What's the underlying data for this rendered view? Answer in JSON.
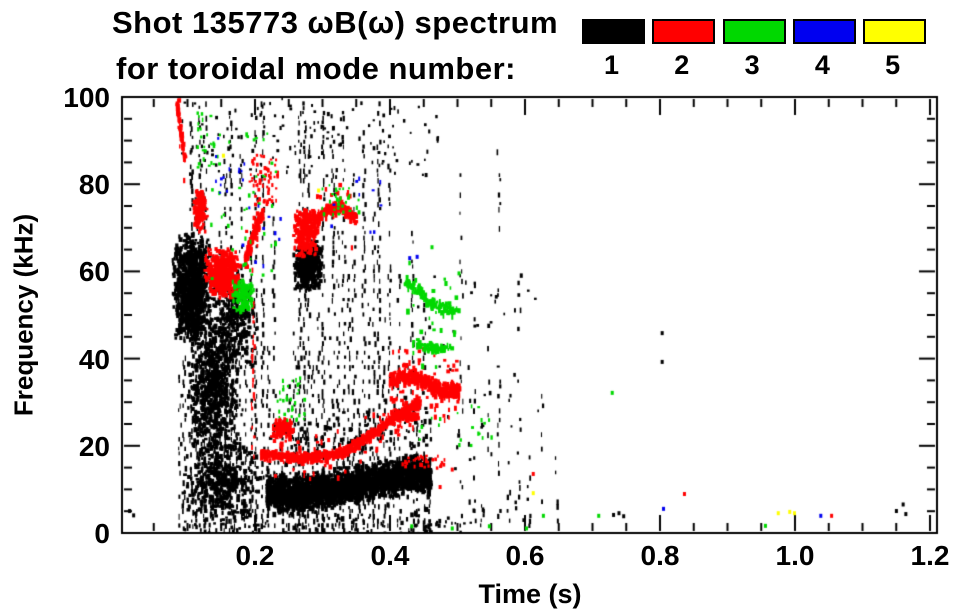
{
  "chart_data": {
    "type": "scatter",
    "title": "Shot 135773 ωB(ω) spectrum",
    "subtitle": "for toroidal mode number:",
    "xlabel": "Time (s)",
    "ylabel": "Frequency (kHz)",
    "xlim": [
      0.0,
      1.21
    ],
    "ylim": [
      0,
      100
    ],
    "x_ticks": [
      {
        "v": 0.2,
        "label": "0.2"
      },
      {
        "v": 0.4,
        "label": "0.4"
      },
      {
        "v": 0.6,
        "label": "0.6"
      },
      {
        "v": 0.8,
        "label": "0.8"
      },
      {
        "v": 1.0,
        "label": "1.0"
      },
      {
        "v": 1.2,
        "label": "1.2"
      }
    ],
    "x_minor_step": 0.05,
    "y_ticks": [
      {
        "v": 0,
        "label": "0"
      },
      {
        "v": 20,
        "label": "20"
      },
      {
        "v": 40,
        "label": "40"
      },
      {
        "v": 60,
        "label": "60"
      },
      {
        "v": 80,
        "label": "80"
      },
      {
        "v": 100,
        "label": "100"
      }
    ],
    "y_minor_step": 5,
    "legend": [
      {
        "label": "1",
        "color": "#000000"
      },
      {
        "label": "2",
        "color": "#ff0000"
      },
      {
        "label": "3",
        "color": "#00d800"
      },
      {
        "label": "4",
        "color": "#0000f0"
      },
      {
        "label": "5",
        "color": "#ffff00"
      }
    ],
    "mode_colors": {
      "1": "#000000",
      "2": "#ff0000",
      "3": "#00d800",
      "4": "#0000f0",
      "5": "#ffff00"
    },
    "features": [
      {
        "mode": 1,
        "kind": "blob",
        "t": [
          0.075,
          0.135
        ],
        "f": [
          44,
          70
        ],
        "n": 1000
      },
      {
        "mode": 1,
        "kind": "blob",
        "t": [
          0.095,
          0.175
        ],
        "f": [
          18,
          50
        ],
        "n": 650
      },
      {
        "mode": 1,
        "kind": "blob",
        "t": [
          0.13,
          0.205
        ],
        "f": [
          38,
          62
        ],
        "n": 300
      },
      {
        "mode": 1,
        "kind": "blob",
        "t": [
          0.085,
          0.21
        ],
        "f": [
          2,
          22
        ],
        "n": 420
      },
      {
        "mode": 1,
        "kind": "blob",
        "t": [
          0.255,
          0.298
        ],
        "f": [
          56,
          68
        ],
        "n": 420
      },
      {
        "mode": 1,
        "kind": "band",
        "path": [
          [
            0.215,
            10
          ],
          [
            0.25,
            9
          ],
          [
            0.3,
            10
          ],
          [
            0.35,
            11.5
          ],
          [
            0.4,
            13
          ],
          [
            0.435,
            14.5
          ],
          [
            0.458,
            13
          ]
        ],
        "hw": 5.5,
        "n": 3000
      },
      {
        "mode": 1,
        "kind": "specks",
        "t": [
          0.09,
          0.47
        ],
        "f": [
          82,
          100
        ],
        "n": 130
      },
      {
        "mode": 1,
        "kind": "specks",
        "t": [
          0.09,
          0.52
        ],
        "f": [
          0,
          4
        ],
        "n": 70
      },
      {
        "mode": 1,
        "kind": "specks",
        "t": [
          0.44,
          0.62
        ],
        "f": [
          2,
          60
        ],
        "n": 55
      },
      {
        "mode": 1,
        "kind": "vstreaks",
        "streaks": [
          [
            0.088,
            0,
            38,
            0.5
          ],
          [
            0.094,
            0,
            55,
            0.5
          ],
          [
            0.105,
            2,
            99,
            0.6
          ],
          [
            0.112,
            0,
            78,
            0.55
          ],
          [
            0.118,
            0,
            97,
            0.6
          ],
          [
            0.125,
            0,
            99,
            0.65
          ],
          [
            0.132,
            0,
            60,
            0.5
          ],
          [
            0.14,
            0,
            45,
            0.5
          ],
          [
            0.148,
            0,
            70,
            0.5
          ],
          [
            0.155,
            0,
            86,
            0.55
          ],
          [
            0.163,
            0,
            97,
            0.6
          ],
          [
            0.17,
            0,
            55,
            0.5
          ],
          [
            0.178,
            0,
            92,
            0.55
          ],
          [
            0.185,
            0,
            40,
            0.5
          ],
          [
            0.193,
            0,
            70,
            0.5
          ],
          [
            0.2,
            0,
            97,
            0.55
          ],
          [
            0.21,
            0,
            99,
            0.65
          ],
          [
            0.218,
            0,
            45,
            0.45
          ],
          [
            0.227,
            0,
            78,
            0.4
          ],
          [
            0.238,
            0,
            25,
            0.45
          ],
          [
            0.248,
            0,
            35,
            0.45
          ],
          [
            0.258,
            0,
            50,
            0.45
          ],
          [
            0.265,
            0,
            99,
            0.6
          ],
          [
            0.272,
            0,
            99,
            0.65
          ],
          [
            0.278,
            0,
            90,
            0.5
          ],
          [
            0.285,
            0,
            40,
            0.45
          ],
          [
            0.292,
            0,
            65,
            0.45
          ],
          [
            0.3,
            0,
            97,
            0.55
          ],
          [
            0.308,
            0,
            55,
            0.45
          ],
          [
            0.315,
            0,
            92,
            0.5
          ],
          [
            0.322,
            0,
            70,
            0.45
          ],
          [
            0.33,
            0,
            99,
            0.6
          ],
          [
            0.338,
            0,
            60,
            0.45
          ],
          [
            0.345,
            0,
            85,
            0.5
          ],
          [
            0.352,
            0,
            45,
            0.45
          ],
          [
            0.36,
            0,
            97,
            0.55
          ],
          [
            0.368,
            0,
            55,
            0.45
          ],
          [
            0.375,
            0,
            80,
            0.5
          ],
          [
            0.382,
            0,
            99,
            0.6
          ],
          [
            0.39,
            0,
            50,
            0.45
          ],
          [
            0.398,
            0,
            90,
            0.5
          ],
          [
            0.405,
            0,
            35,
            0.4
          ],
          [
            0.412,
            0,
            60,
            0.4
          ],
          [
            0.425,
            0,
            45,
            0.4
          ],
          [
            0.432,
            0,
            70,
            0.4
          ],
          [
            0.44,
            0,
            30,
            0.4
          ],
          [
            0.45,
            0,
            55,
            0.35
          ],
          [
            0.458,
            0,
            25,
            0.35
          ],
          [
            0.505,
            0,
            88,
            0.3
          ],
          [
            0.515,
            0,
            40,
            0.25
          ],
          [
            0.525,
            0,
            60,
            0.25
          ],
          [
            0.535,
            0,
            30,
            0.25
          ],
          [
            0.545,
            0,
            50,
            0.25
          ],
          [
            0.56,
            0,
            90,
            0.3
          ],
          [
            0.575,
            0,
            35,
            0.2
          ],
          [
            0.59,
            0,
            55,
            0.2
          ],
          [
            0.605,
            0,
            25,
            0.2
          ],
          [
            0.625,
            0,
            40,
            0.2
          ],
          [
            0.645,
            0,
            20,
            0.2
          ]
        ]
      },
      {
        "mode": 1,
        "kind": "dots",
        "points": [
          [
            0.012,
            5.5
          ],
          [
            0.018,
            4.5
          ],
          [
            0.801,
            46.3
          ],
          [
            0.801,
            39.7
          ],
          [
            0.729,
            4.6
          ],
          [
            0.737,
            5
          ],
          [
            0.744,
            4.3
          ],
          [
            1.148,
            5.5
          ],
          [
            1.158,
            7
          ],
          [
            1.162,
            4.8
          ]
        ]
      },
      {
        "mode": 2,
        "kind": "band",
        "path": [
          [
            0.082,
            99
          ],
          [
            0.09,
            90
          ],
          [
            0.095,
            85
          ]
        ],
        "hw": 2,
        "n": 70
      },
      {
        "mode": 2,
        "kind": "blob",
        "t": [
          0.106,
          0.128
        ],
        "f": [
          69,
          80
        ],
        "n": 130
      },
      {
        "mode": 2,
        "kind": "blob",
        "t": [
          0.123,
          0.178
        ],
        "f": [
          54,
          66
        ],
        "n": 520
      },
      {
        "mode": 2,
        "kind": "band",
        "path": [
          [
            0.183,
            63
          ],
          [
            0.21,
            75
          ]
        ],
        "hw": 2.5,
        "n": 160
      },
      {
        "mode": 2,
        "kind": "specks",
        "t": [
          0.188,
          0.232
        ],
        "f": [
          76,
          87
        ],
        "n": 60
      },
      {
        "mode": 2,
        "kind": "blob",
        "t": [
          0.253,
          0.292
        ],
        "f": [
          63,
          76
        ],
        "n": 260
      },
      {
        "mode": 2,
        "kind": "band",
        "path": [
          [
            0.285,
            72
          ],
          [
            0.305,
            74.5
          ],
          [
            0.325,
            75.5
          ],
          [
            0.348,
            72.5
          ]
        ],
        "hw": 2,
        "n": 220
      },
      {
        "mode": 2,
        "kind": "vstreaks",
        "streaks": [
          [
            0.196,
            18,
            54,
            0.7
          ]
        ]
      },
      {
        "mode": 2,
        "kind": "band",
        "path": [
          [
            0.207,
            18.5
          ],
          [
            0.25,
            17.8
          ],
          [
            0.3,
            18
          ],
          [
            0.335,
            19.5
          ],
          [
            0.37,
            23
          ],
          [
            0.4,
            26.5
          ],
          [
            0.425,
            29
          ],
          [
            0.443,
            30.5
          ]
        ],
        "hw": 1.6,
        "n": 750
      },
      {
        "mode": 2,
        "kind": "blob",
        "t": [
          0.222,
          0.258
        ],
        "f": [
          22,
          27
        ],
        "n": 110
      },
      {
        "mode": 2,
        "kind": "band",
        "path": [
          [
            0.398,
            35.5
          ],
          [
            0.43,
            36.5
          ],
          [
            0.455,
            34.5
          ],
          [
            0.475,
            33
          ],
          [
            0.5,
            33.5
          ]
        ],
        "hw": 2.4,
        "n": 500
      },
      {
        "mode": 2,
        "kind": "band",
        "path": [
          [
            0.4,
            28
          ],
          [
            0.44,
            27
          ]
        ],
        "hw": 1.2,
        "n": 110
      },
      {
        "mode": 2,
        "kind": "specks",
        "t": [
          0.415,
          0.48
        ],
        "f": [
          15,
          18
        ],
        "n": 35
      },
      {
        "mode": 2,
        "kind": "dots",
        "points": [
          [
            0.61,
            14
          ],
          [
            0.834,
            9.4
          ],
          [
            1.052,
            4.4
          ],
          [
            0.472,
            11
          ],
          [
            0.49,
            15
          ]
        ]
      },
      {
        "mode": 3,
        "kind": "specks",
        "t": [
          0.112,
          0.138
        ],
        "f": [
          84,
          97
        ],
        "n": 25
      },
      {
        "mode": 3,
        "kind": "specks",
        "t": [
          0.13,
          0.23
        ],
        "f": [
          58,
          92
        ],
        "n": 45
      },
      {
        "mode": 3,
        "kind": "blob",
        "t": [
          0.163,
          0.198
        ],
        "f": [
          50,
          59
        ],
        "n": 110
      },
      {
        "mode": 3,
        "kind": "specks",
        "t": [
          0.232,
          0.272
        ],
        "f": [
          26,
          36
        ],
        "n": 35
      },
      {
        "mode": 3,
        "kind": "specks",
        "t": [
          0.298,
          0.352
        ],
        "f": [
          73,
          80
        ],
        "n": 30
      },
      {
        "mode": 3,
        "kind": "band",
        "path": [
          [
            0.42,
            58
          ],
          [
            0.445,
            55
          ],
          [
            0.46,
            53
          ],
          [
            0.5,
            51
          ]
        ],
        "hw": 2.2,
        "n": 140
      },
      {
        "mode": 3,
        "kind": "band",
        "path": [
          [
            0.432,
            44
          ],
          [
            0.468,
            42.5
          ],
          [
            0.49,
            43
          ]
        ],
        "hw": 1.5,
        "n": 80
      },
      {
        "mode": 3,
        "kind": "specks",
        "t": [
          0.44,
          0.56
        ],
        "f": [
          20,
          30
        ],
        "n": 20
      },
      {
        "mode": 3,
        "kind": "dots",
        "points": [
          [
            0.43,
            2
          ],
          [
            0.49,
            1.5
          ],
          [
            0.545,
            2
          ],
          [
            0.6,
            1.5
          ],
          [
            0.625,
            4.4
          ],
          [
            0.707,
            4.4
          ],
          [
            0.727,
            32.6
          ],
          [
            0.954,
            2.1
          ],
          [
            0.46,
            66
          ],
          [
            0.5,
            60
          ]
        ]
      },
      {
        "mode": 4,
        "kind": "specks",
        "t": [
          0.14,
          0.185
        ],
        "f": [
          78,
          91
        ],
        "n": 14
      },
      {
        "mode": 4,
        "kind": "specks",
        "t": [
          0.175,
          0.24
        ],
        "f": [
          60,
          76
        ],
        "n": 10
      },
      {
        "mode": 4,
        "kind": "specks",
        "t": [
          0.3,
          0.385
        ],
        "f": [
          58,
          82
        ],
        "n": 10
      },
      {
        "mode": 4,
        "kind": "dots",
        "points": [
          [
            0.427,
            63.5
          ],
          [
            0.438,
            63.8
          ],
          [
            0.803,
            6.0
          ],
          [
            1.036,
            4.4
          ]
        ]
      },
      {
        "mode": 5,
        "kind": "dots",
        "points": [
          [
            0.151,
            87
          ],
          [
            0.292,
            79
          ],
          [
            0.61,
            9.6
          ],
          [
            0.973,
            5.0
          ],
          [
            0.99,
            5.3
          ],
          [
            0.997,
            5.0
          ]
        ]
      }
    ]
  }
}
